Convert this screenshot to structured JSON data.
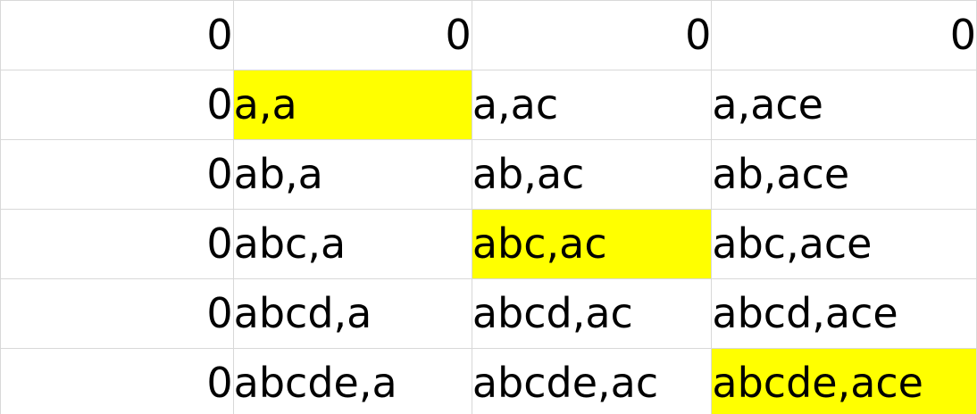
{
  "highlight_color": "#ffff00",
  "header_row": [
    "0",
    "0",
    "0",
    "0"
  ],
  "rows": [
    {
      "label": "0",
      "cells": [
        "a,a",
        "a,ac",
        "a,ace"
      ]
    },
    {
      "label": "0",
      "cells": [
        "ab,a",
        "ab,ac",
        "ab,ace"
      ]
    },
    {
      "label": "0",
      "cells": [
        "abc,a",
        "abc,ac",
        "abc,ace"
      ]
    },
    {
      "label": "0",
      "cells": [
        "abcd,a",
        "abcd,ac",
        "abcd,ace"
      ]
    },
    {
      "label": "0",
      "cells": [
        "abcde,a",
        "abcde,ac",
        "abcde,ace"
      ]
    }
  ],
  "highlighted_cells": [
    "a,a",
    "abc,ac",
    "abcde,ace"
  ]
}
